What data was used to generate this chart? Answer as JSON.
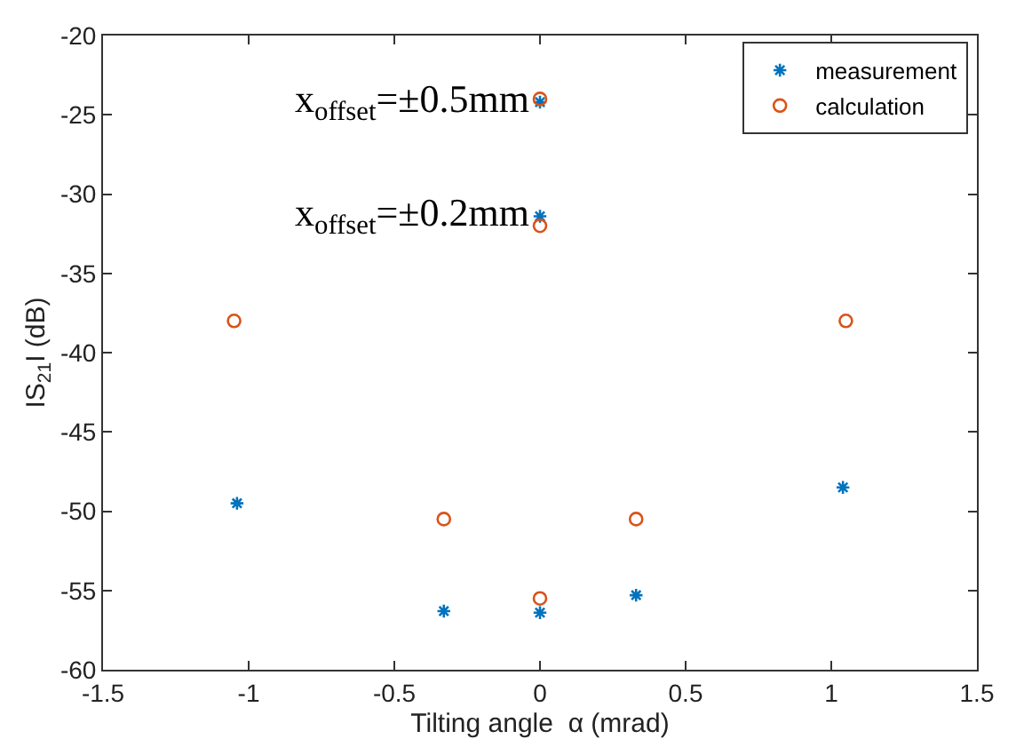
{
  "chart_data": {
    "type": "scatter",
    "xlabel": "Tilting angle  α (mrad)",
    "ylabel": "IS$_{21}$I (dB)",
    "xlim": [
      -1.5,
      1.5
    ],
    "xticks": [
      -1.5,
      -1,
      -0.5,
      0,
      0.5,
      1,
      1.5
    ],
    "ylim": [
      -60,
      -20
    ],
    "yticks": [
      -60,
      -55,
      -50,
      -45,
      -40,
      -35,
      -30,
      -25,
      -20
    ],
    "legend": "top right",
    "series": [
      {
        "name": "measurement",
        "color": "#0072bd",
        "marker": "cross",
        "x": [
          -1.04,
          -0.33,
          0,
          0.33,
          1.04,
          0,
          0
        ],
        "values": [
          -49.5,
          -56.3,
          -56.4,
          -55.3,
          -48.5,
          -24.2,
          -31.4
        ]
      },
      {
        "name": "calculation",
        "color": "#d95319",
        "marker": "circle",
        "x": [
          -1.05,
          -0.33,
          0,
          0.33,
          1.05,
          0,
          0
        ],
        "values": [
          -38,
          -50.5,
          -55.5,
          -50.5,
          -38,
          -24,
          -32
        ]
      }
    ],
    "annotations": [
      {
        "text": "x$_{offset}$=±0.5mm",
        "x": 0,
        "y": -24.2
      },
      {
        "text": "x$_{offset}$=±0.2mm",
        "x": 0,
        "y": -31.4
      }
    ]
  }
}
